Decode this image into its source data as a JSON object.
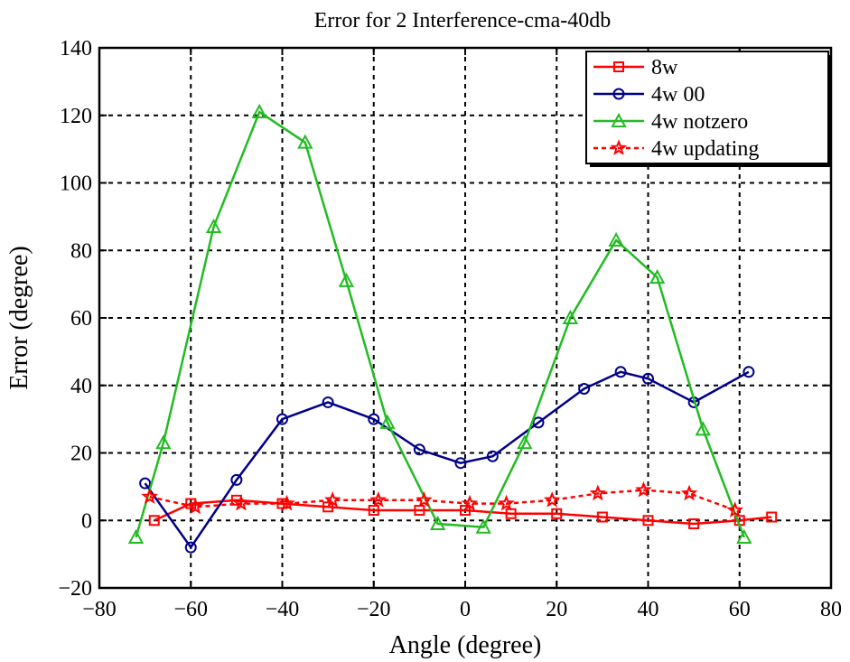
{
  "chart_data": {
    "type": "line",
    "title": "Error for 2 Interference-cma-40db",
    "xlabel": "Angle (degree)",
    "ylabel": "Error (degree)",
    "xlim": [
      -80,
      80
    ],
    "ylim": [
      -20,
      140
    ],
    "xticks": [
      -80,
      -60,
      -40,
      -20,
      0,
      20,
      40,
      60,
      80
    ],
    "yticks": [
      -20,
      0,
      20,
      40,
      60,
      80,
      100,
      120,
      140
    ],
    "xtick_labels": [
      "−80",
      "−60",
      "−40",
      "−20",
      "0",
      "20",
      "40",
      "60",
      "80"
    ],
    "ytick_labels": [
      "−20",
      "0",
      "20",
      "40",
      "60",
      "80",
      "100",
      "120",
      "140"
    ],
    "grid": true,
    "legend_position": "top-right",
    "series": [
      {
        "name": "8w",
        "color": "#ff0000",
        "dashed": false,
        "marker": "square",
        "x": [
          -68,
          -60,
          -50,
          -40,
          -30,
          -20,
          -10,
          0,
          10,
          20,
          30,
          40,
          50,
          60,
          67
        ],
        "y": [
          0,
          5,
          6,
          5,
          4,
          3,
          3,
          3,
          2,
          2,
          1,
          0,
          -1,
          0,
          1
        ]
      },
      {
        "name": "4w 00",
        "color": "#00008b",
        "dashed": false,
        "marker": "circle",
        "x": [
          -70,
          -60,
          -50,
          -40,
          -30,
          -20,
          -10,
          -1,
          6,
          16,
          26,
          34,
          40,
          50,
          62
        ],
        "y": [
          11,
          -8,
          12,
          30,
          35,
          30,
          21,
          17,
          19,
          29,
          39,
          44,
          42,
          35,
          44
        ]
      },
      {
        "name": "4w notzero",
        "color": "#22bb22",
        "dashed": false,
        "marker": "triangle",
        "x": [
          -72,
          -66,
          -55,
          -45,
          -35,
          -26,
          -17,
          -6,
          4,
          13,
          23,
          33,
          42,
          52,
          61
        ],
        "y": [
          -5,
          23,
          87,
          121,
          112,
          71,
          29,
          -1,
          -2,
          23,
          60,
          83,
          72,
          27,
          -5
        ]
      },
      {
        "name": "4w updating",
        "color": "#ff0000",
        "dashed": true,
        "marker": "star",
        "x": [
          -69,
          -59,
          -49,
          -39,
          -29,
          -19,
          -9,
          1,
          9,
          19,
          29,
          39,
          49,
          59
        ],
        "y": [
          7,
          4,
          5,
          5,
          6,
          6,
          6,
          5,
          5,
          6,
          8,
          9,
          8,
          3
        ]
      }
    ]
  }
}
